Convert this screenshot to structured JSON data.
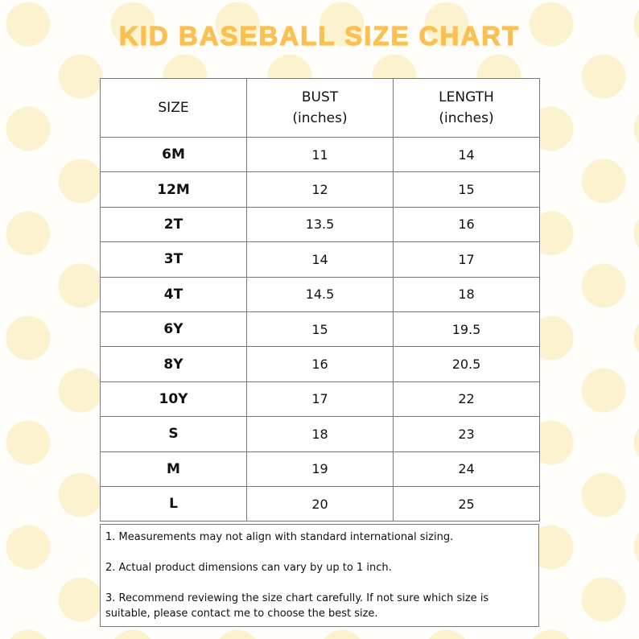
{
  "header": {
    "title": "KID BASEBALL SIZE CHART"
  },
  "table": {
    "headers": [
      [
        "SIZE"
      ],
      [
        "BUST",
        "(inches)"
      ],
      [
        "LENGTH",
        "(inches)"
      ]
    ],
    "rows": [
      [
        "6M",
        11,
        14
      ],
      [
        "12M",
        12,
        15
      ],
      [
        "2T",
        13.5,
        16
      ],
      [
        "3T",
        14,
        17
      ],
      [
        "4T",
        14.5,
        18
      ],
      [
        "6Y",
        15,
        19.5
      ],
      [
        "8Y",
        16,
        20.5
      ],
      [
        "10Y",
        17,
        22
      ],
      [
        "S",
        18,
        23
      ],
      [
        "M",
        19,
        24
      ],
      [
        "L",
        20,
        25
      ]
    ]
  },
  "notes": [
    "1. Measurements may not align with standard international sizing.",
    "2. Actual product dimensions can vary by up to 1 inch.",
    "3. Recommend reviewing the size chart carefully. If not sure which size is suitable, please contact me to choose the best size."
  ]
}
